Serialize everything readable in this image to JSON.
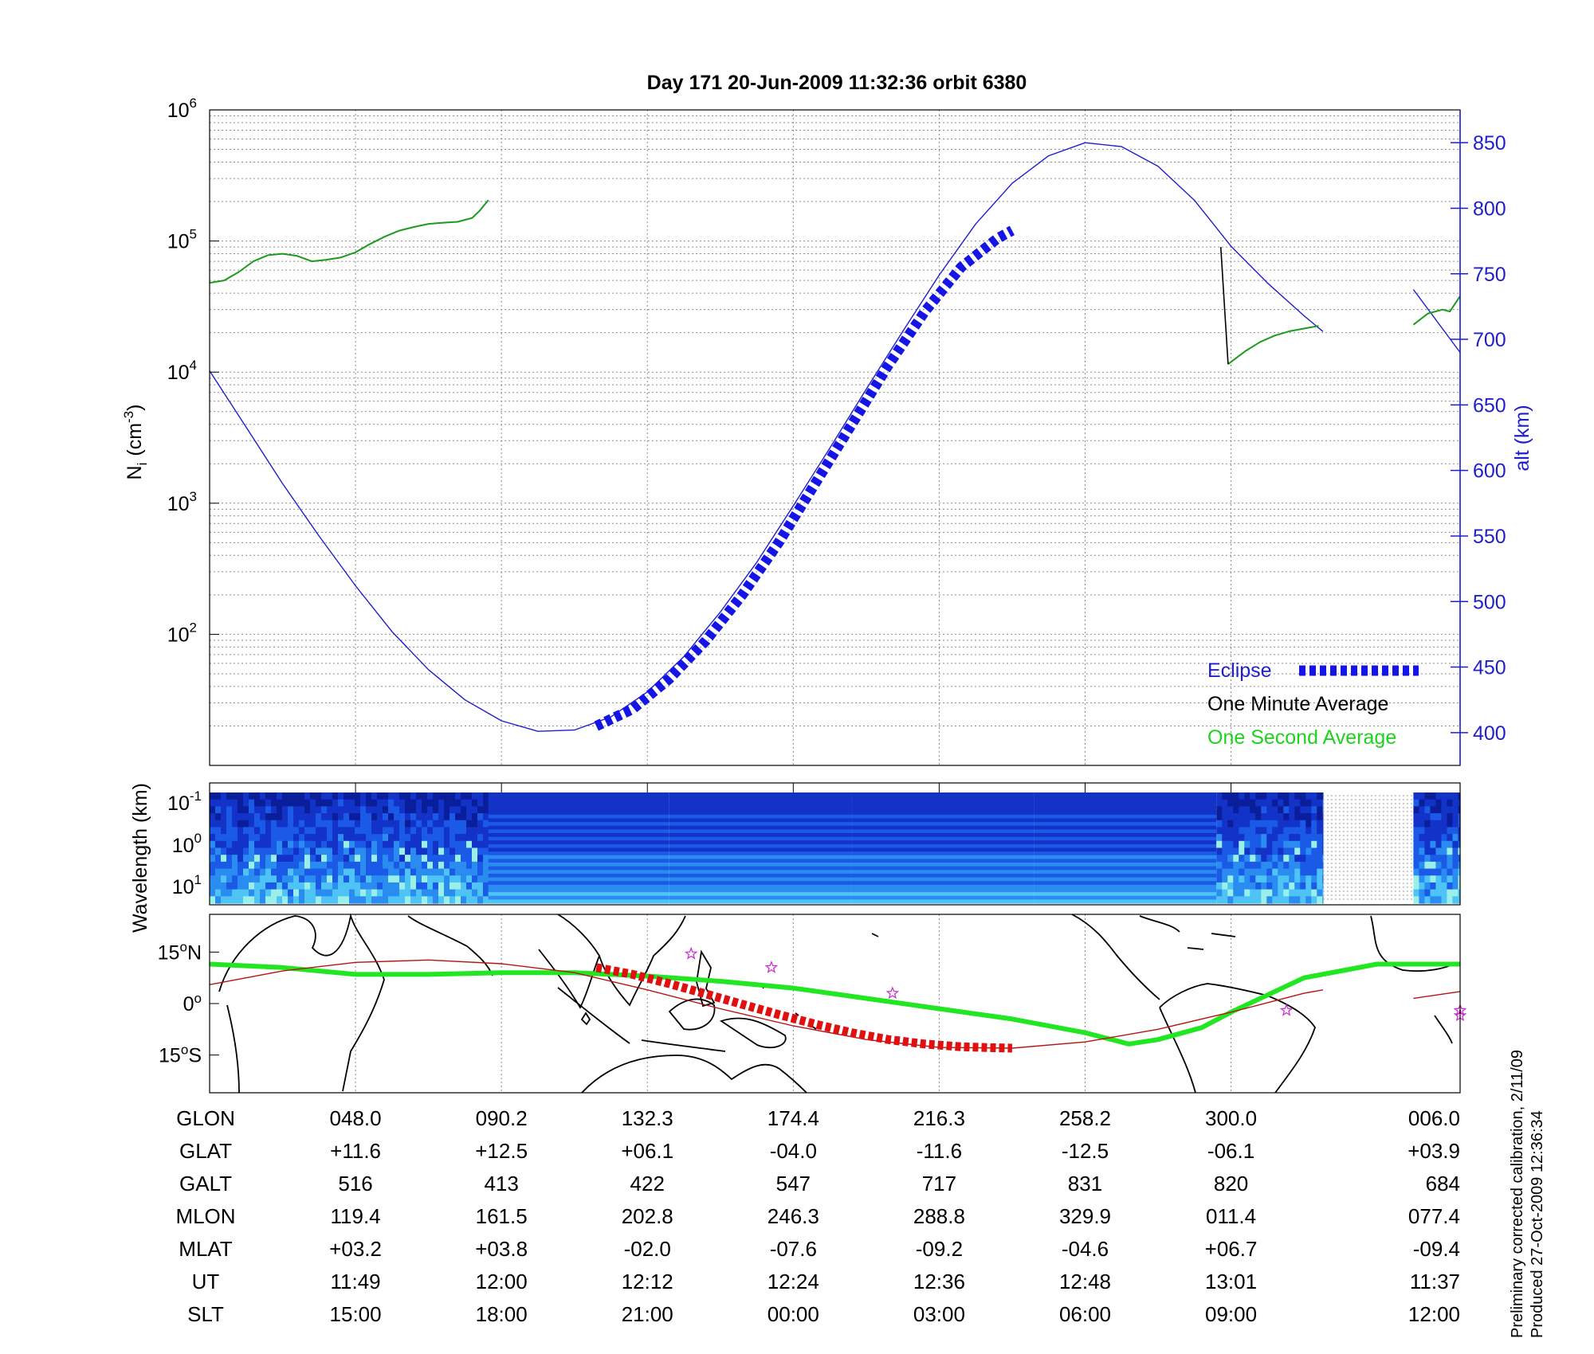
{
  "title": "Day 171  20-Jun-2009 11:32:36   orbit 6380",
  "colors": {
    "altitude": "#1e1ecd",
    "density_second": "#1e9a1e",
    "density_minute": "#000000",
    "eclipse": "#1414e6",
    "track_eclipse": "#e01010",
    "magnetic_equator": "#22e622",
    "track": "#b41414",
    "stars": "#cc33cc"
  },
  "chart_data": [
    {
      "type": "line",
      "name": "density-altitude-panel",
      "ylabel_left": "N_i (cm^-3)",
      "ylabel_left_main": "N",
      "ylabel_left_sub": "i",
      "ylabel_left_unit_open": "(cm",
      "ylabel_left_unit_exp": "-3",
      "ylabel_left_unit_close": ")",
      "ylabel_right": "alt (km)",
      "yscale_left": "log",
      "ylim_left": [
        10,
        1000000
      ],
      "ylim_right": [
        375,
        875
      ],
      "yticks_left": [
        {
          "base": "10",
          "exp": "2",
          "value": 100
        },
        {
          "base": "10",
          "exp": "3",
          "value": 1000
        },
        {
          "base": "10",
          "exp": "4",
          "value": 10000
        },
        {
          "base": "10",
          "exp": "5",
          "value": 100000
        },
        {
          "base": "10",
          "exp": "6",
          "value": 1000000
        }
      ],
      "yticks_right": [
        "400",
        "450",
        "500",
        "550",
        "600",
        "650",
        "700",
        "750",
        "800",
        "850"
      ],
      "xlim": [
        0,
        8.57
      ],
      "grid": true,
      "legend": {
        "placement": "lower-right",
        "entries": [
          "Eclipse",
          "One Minute Average",
          "One Second Average"
        ]
      },
      "series": [
        {
          "role": "altitude",
          "axis": "right",
          "x": [
            0,
            0.25,
            0.5,
            0.75,
            1.0,
            1.25,
            1.5,
            1.75,
            2.0,
            2.25,
            2.5,
            2.75,
            3.0,
            3.25,
            3.5,
            3.75,
            4.0,
            4.25,
            4.5,
            4.75,
            5.0,
            5.25,
            5.5,
            5.75,
            6.0,
            6.25,
            6.5,
            6.75,
            7.0,
            7.25,
            7.5,
            7.63
          ],
          "y": [
            676,
            633,
            590,
            550,
            512,
            477,
            448,
            425,
            409,
            401,
            402,
            412,
            431,
            458,
            492,
            530,
            573,
            617,
            662,
            706,
            749,
            788,
            819,
            840,
            850,
            847,
            832,
            806,
            771,
            743,
            718,
            706
          ]
        },
        {
          "role": "altitude-late",
          "axis": "right",
          "x": [
            8.25,
            8.57
          ],
          "y": [
            738,
            690
          ]
        },
        {
          "role": "eclipse",
          "axis": "right",
          "x": [
            2.65,
            2.9,
            3.15,
            3.4,
            3.65,
            3.9,
            4.15,
            4.4,
            4.65,
            4.9,
            5.15,
            5.4,
            5.5
          ],
          "y": [
            405,
            418,
            441,
            470,
            505,
            545,
            590,
            635,
            680,
            721,
            755,
            777,
            783
          ]
        },
        {
          "role": "density-one-second",
          "axis": "left",
          "x": [
            0,
            0.1,
            0.2,
            0.3,
            0.4,
            0.5,
            0.6,
            0.7,
            0.8,
            0.9,
            1.0,
            1.1,
            1.2,
            1.3,
            1.4,
            1.5,
            1.6,
            1.7,
            1.8,
            1.85,
            1.91
          ],
          "y": [
            48000,
            50000,
            58000,
            70000,
            78000,
            80000,
            77000,
            70000,
            72000,
            75000,
            82000,
            95000,
            108000,
            120000,
            128000,
            135000,
            138000,
            140000,
            150000,
            170000,
            205000
          ]
        },
        {
          "role": "density-one-second-late",
          "axis": "left",
          "x": [
            6.98,
            7.1,
            7.2,
            7.3,
            7.4,
            7.5,
            7.6
          ],
          "y": [
            11500,
            14500,
            17000,
            19000,
            20500,
            21500,
            22500
          ]
        },
        {
          "role": "density-one-second-end",
          "axis": "left",
          "x": [
            8.25,
            8.35,
            8.45,
            8.5,
            8.57
          ],
          "y": [
            23000,
            28000,
            30000,
            29000,
            38000
          ]
        },
        {
          "role": "density-one-minute-drop",
          "axis": "left",
          "x": [
            6.93,
            6.98
          ],
          "y": [
            90000,
            11500
          ]
        }
      ]
    },
    {
      "type": "heatmap",
      "name": "wavelength-spectrogram",
      "ylabel": "Wavelength (km)",
      "yticks": [
        {
          "base": "10",
          "exp": "-1"
        },
        {
          "base": "10",
          "exp": "0"
        },
        {
          "base": "10",
          "exp": "1"
        }
      ],
      "colormap": [
        "#0a1e9c",
        "#1232c8",
        "#1a5ae6",
        "#2a8cf0",
        "#4ec3f5",
        "#9af0e8"
      ],
      "segments": [
        {
          "x0": 0,
          "x1": 1.91,
          "style": "noisy"
        },
        {
          "x0": 1.91,
          "x1": 3.15,
          "style": "banded"
        },
        {
          "x0": 3.15,
          "x1": 4.4,
          "style": "banded"
        },
        {
          "x0": 4.4,
          "x1": 5.65,
          "style": "banded"
        },
        {
          "x0": 5.65,
          "x1": 6.9,
          "style": "banded"
        },
        {
          "x0": 6.9,
          "x1": 7.63,
          "style": "noisy"
        },
        {
          "x0": 7.63,
          "x1": 8.25,
          "style": "gap"
        },
        {
          "x0": 8.25,
          "x1": 8.57,
          "style": "noisy"
        }
      ]
    },
    {
      "type": "map",
      "name": "orbit-track-map",
      "yticks": [
        {
          "label": "15",
          "hemi": "N",
          "lat": 15
        },
        {
          "label": "0",
          "hemi": "",
          "lat": 0
        },
        {
          "label": "15",
          "hemi": "S",
          "lat": -15
        }
      ],
      "ylim": [
        -26,
        26
      ],
      "xlim": [
        0,
        8.57
      ],
      "track": {
        "x": [
          0,
          0.5,
          1.0,
          1.5,
          2.0,
          2.5,
          3.0,
          3.5,
          4.0,
          4.5,
          5.0,
          5.5,
          6.0,
          6.5,
          7.0,
          7.5,
          7.63
        ],
        "lat": [
          5.5,
          9.5,
          12.0,
          12.7,
          11.6,
          9.0,
          4.0,
          -1.5,
          -6.5,
          -10.5,
          -12.8,
          -13.0,
          -11.2,
          -7.5,
          -2.5,
          3.0,
          4.0
        ]
      },
      "track_late": {
        "x": [
          8.25,
          8.57
        ],
        "lat": [
          1.5,
          3.5
        ]
      },
      "track_eclipse": {
        "x": [
          2.65,
          2.9,
          3.15,
          3.4,
          3.65,
          3.9,
          4.15,
          4.4,
          4.65,
          4.9,
          5.15,
          5.4,
          5.5
        ],
        "lat": [
          10.5,
          8.5,
          5.8,
          2.8,
          -0.2,
          -3.2,
          -6.0,
          -8.5,
          -10.5,
          -11.8,
          -12.6,
          -12.9,
          -13.0
        ]
      },
      "magnetic_equator": {
        "x": [
          0,
          0.5,
          1.0,
          1.5,
          2.0,
          2.5,
          3.0,
          3.5,
          4.0,
          4.5,
          5.0,
          5.5,
          6.0,
          6.3,
          6.5,
          6.8,
          7.0,
          7.5,
          8.0,
          8.57
        ],
        "lat": [
          11.5,
          10.5,
          8.5,
          8.5,
          9.0,
          9.0,
          8.0,
          6.5,
          4.5,
          1.5,
          -1.5,
          -4.5,
          -8.5,
          -11.8,
          -10.5,
          -7.0,
          -2.5,
          7.5,
          11.5,
          11.5
        ]
      },
      "stars": [
        {
          "x": 3.3,
          "lat": 14.5
        },
        {
          "x": 3.85,
          "lat": 10.5
        },
        {
          "x": 4.68,
          "lat": 3.0
        },
        {
          "x": 7.38,
          "lat": -2.0
        },
        {
          "x": 8.57,
          "lat": -2.0
        },
        {
          "x": 8.57,
          "lat": -3.5
        }
      ]
    }
  ],
  "ephemeris": {
    "rows": [
      {
        "label": "GLON",
        "values": [
          "048.0",
          "090.2",
          "132.3",
          "174.4",
          "216.3",
          "258.2",
          "300.0",
          "006.0"
        ]
      },
      {
        "label": "GLAT",
        "values": [
          "+11.6",
          "+12.5",
          "+06.1",
          "-04.0",
          "-11.6",
          "-12.5",
          "-06.1",
          "+03.9"
        ]
      },
      {
        "label": "GALT",
        "values": [
          "516",
          "413",
          "422",
          "547",
          "717",
          "831",
          "820",
          "684"
        ]
      },
      {
        "label": "MLON",
        "values": [
          "119.4",
          "161.5",
          "202.8",
          "246.3",
          "288.8",
          "329.9",
          "011.4",
          "077.4"
        ]
      },
      {
        "label": "MLAT",
        "values": [
          "+03.2",
          "+03.8",
          "-02.0",
          "-07.6",
          "-09.2",
          "-04.6",
          "+06.7",
          "-09.4"
        ]
      },
      {
        "label": "UT",
        "values": [
          "11:49",
          "12:00",
          "12:12",
          "12:24",
          "12:36",
          "12:48",
          "13:01",
          "11:37"
        ]
      },
      {
        "label": "SLT",
        "values": [
          "15:00",
          "18:00",
          "21:00",
          "00:00",
          "03:00",
          "06:00",
          "09:00",
          "12:00"
        ]
      }
    ],
    "columns_x": [
      1,
      2,
      3,
      4,
      5,
      6,
      7,
      8.57
    ]
  },
  "footer": {
    "calibration": "Preliminary corrected calibration, 2/11/09",
    "produced": "Produced 27-Oct-2009 12:36:34"
  }
}
